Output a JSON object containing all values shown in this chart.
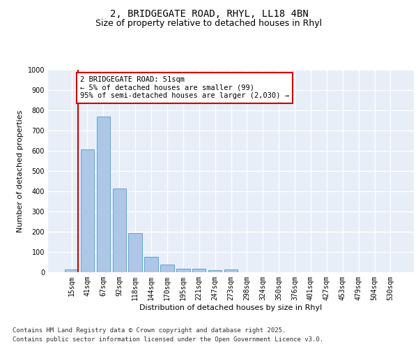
{
  "title_line1": "2, BRIDGEGATE ROAD, RHYL, LL18 4BN",
  "title_line2": "Size of property relative to detached houses in Rhyl",
  "xlabel": "Distribution of detached houses by size in Rhyl",
  "ylabel": "Number of detached properties",
  "categories": [
    "15sqm",
    "41sqm",
    "67sqm",
    "92sqm",
    "118sqm",
    "144sqm",
    "170sqm",
    "195sqm",
    "221sqm",
    "247sqm",
    "273sqm",
    "298sqm",
    "324sqm",
    "350sqm",
    "376sqm",
    "401sqm",
    "427sqm",
    "453sqm",
    "479sqm",
    "504sqm",
    "530sqm"
  ],
  "values": [
    15,
    607,
    770,
    413,
    193,
    77,
    38,
    18,
    18,
    12,
    15,
    0,
    0,
    0,
    0,
    0,
    0,
    0,
    0,
    0,
    0
  ],
  "bar_color": "#aec6e8",
  "bar_edge_color": "#5599cc",
  "vline_color": "#cc0000",
  "annotation_text": "2 BRIDGEGATE ROAD: 51sqm\n← 5% of detached houses are smaller (99)\n95% of semi-detached houses are larger (2,030) →",
  "annotation_box_color": "#cc0000",
  "ylim": [
    0,
    1000
  ],
  "yticks": [
    0,
    100,
    200,
    300,
    400,
    500,
    600,
    700,
    800,
    900,
    1000
  ],
  "background_color": "#e8eef8",
  "grid_color": "#ffffff",
  "fig_background": "#ffffff",
  "footer_line1": "Contains HM Land Registry data © Crown copyright and database right 2025.",
  "footer_line2": "Contains public sector information licensed under the Open Government Licence v3.0.",
  "title_fontsize": 10,
  "subtitle_fontsize": 9,
  "axis_label_fontsize": 8,
  "tick_fontsize": 7,
  "annotation_fontsize": 7.5,
  "footer_fontsize": 6.5
}
